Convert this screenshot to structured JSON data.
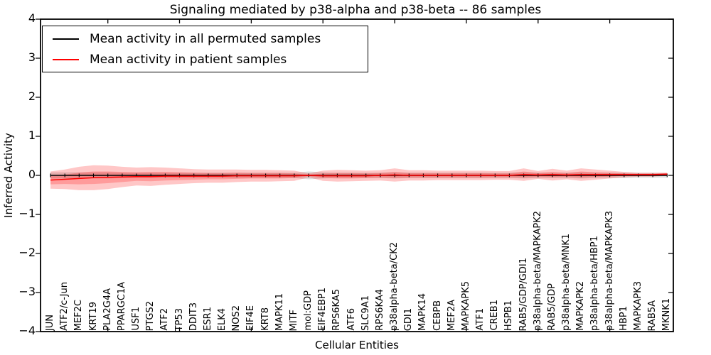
{
  "title": "Signaling mediated by p38-alpha and p38-beta -- 86 samples",
  "axes": {
    "xlabel": "Cellular Entities",
    "ylabel": "Inferred Activity",
    "yticks": [
      "4",
      "3",
      "2",
      "1",
      "0",
      "−1",
      "−2",
      "−3",
      "−4"
    ],
    "ylim": [
      -4,
      4
    ],
    "grid": false
  },
  "legend": {
    "position": "upper-left",
    "items": [
      {
        "label": "Mean activity in all permuted samples",
        "color": "#000000"
      },
      {
        "label": "Mean activity in patient samples",
        "color": "#ff0000"
      }
    ]
  },
  "colors": {
    "patient_line": "#ff0000",
    "permuted_line": "#000000",
    "patient_band": "rgba(255,0,0,0.22)",
    "permuted_band": "rgba(0,0,0,0.13)",
    "frame": "#000000"
  },
  "chart_data": {
    "type": "line",
    "title": "Signaling mediated by p38-alpha and p38-beta -- 86 samples",
    "xlabel": "Cellular Entities",
    "ylabel": "Inferred Activity",
    "ylim": [
      -4,
      4
    ],
    "legend_position": "upper-left",
    "grid": false,
    "categories": [
      "JUN",
      "ATF2/c-Jun",
      "MEF2C",
      "KRT19",
      "PLA2G4A",
      "PPARGC1A",
      "USF1",
      "PTGS2",
      "ATF2",
      "TP53",
      "DDIT3",
      "ESR1",
      "ELK4",
      "NOS2",
      "EIF4E",
      "KRT8",
      "MAPK11",
      "MITF",
      "mol:GDP",
      "EIF4EBP1",
      "RPS6KA5",
      "ATF6",
      "SLC9A1",
      "RPS6KA4",
      "p38alpha-beta/CK2",
      "GDI1",
      "MAPK14",
      "CEBPB",
      "MEF2A",
      "MAPKAPK5",
      "ATF1",
      "CREB1",
      "HSPB1",
      "RAB5/GDP/GDI1",
      "p38alpha-beta/MAPKAPK2",
      "RAB5/GDP",
      "p38alpha-beta/MNK1",
      "MAPKAPK2",
      "p38alpha-beta/HBP1",
      "p38alpha-beta/MAPKAPK3",
      "HBP1",
      "MAPKAPK3",
      "RAB5A",
      "MKNK1"
    ],
    "series": [
      {
        "name": "Mean activity in all permuted samples",
        "color": "#000000",
        "values": [
          0,
          0,
          0,
          0,
          0,
          0,
          0,
          0,
          0,
          0,
          0,
          0,
          0,
          0,
          0,
          0,
          0,
          0,
          0,
          0,
          0,
          0,
          0,
          0,
          0,
          0,
          0,
          0,
          0,
          0,
          0,
          0,
          0,
          0,
          0,
          0,
          0,
          0,
          0,
          0,
          0,
          0,
          0,
          0
        ],
        "band_half_width": [
          0.08,
          0.08,
          0.08,
          0.08,
          0.08,
          0.07,
          0.07,
          0.07,
          0.07,
          0.07,
          0.07,
          0.07,
          0.07,
          0.07,
          0.07,
          0.07,
          0.07,
          0.07,
          0.1,
          0.08,
          0.07,
          0.07,
          0.07,
          0.07,
          0.08,
          0.07,
          0.07,
          0.07,
          0.07,
          0.07,
          0.07,
          0.07,
          0.07,
          0.08,
          0.07,
          0.07,
          0.07,
          0.08,
          0.07,
          0.07,
          0.07,
          0.06,
          0.06,
          0.06
        ]
      },
      {
        "name": "Mean activity in patient samples",
        "color": "#ff0000",
        "values": [
          -0.12,
          -0.1,
          -0.08,
          -0.06,
          -0.05,
          -0.04,
          -0.03,
          -0.03,
          -0.02,
          -0.02,
          -0.02,
          -0.02,
          -0.02,
          -0.01,
          -0.01,
          -0.01,
          -0.01,
          -0.01,
          0,
          -0.01,
          -0.01,
          -0.01,
          -0.01,
          0,
          0.01,
          0,
          0,
          0,
          0,
          0,
          0,
          0,
          0,
          0.02,
          0.01,
          0.02,
          0.01,
          0.02,
          0.02,
          0.02,
          0.02,
          0.02,
          0.02,
          0.03
        ],
        "band_outer_half_width": [
          0.22,
          0.25,
          0.3,
          0.32,
          0.3,
          0.26,
          0.23,
          0.24,
          0.22,
          0.2,
          0.18,
          0.17,
          0.17,
          0.16,
          0.15,
          0.15,
          0.14,
          0.13,
          0.05,
          0.13,
          0.15,
          0.14,
          0.13,
          0.13,
          0.17,
          0.13,
          0.13,
          0.12,
          0.12,
          0.12,
          0.12,
          0.11,
          0.11,
          0.16,
          0.1,
          0.15,
          0.11,
          0.16,
          0.13,
          0.1,
          0.07,
          0.05,
          0.05,
          0.04
        ],
        "band_inner_half_width": [
          0.11,
          0.12,
          0.15,
          0.16,
          0.15,
          0.13,
          0.11,
          0.12,
          0.11,
          0.1,
          0.09,
          0.08,
          0.08,
          0.08,
          0.07,
          0.07,
          0.07,
          0.06,
          0.02,
          0.06,
          0.07,
          0.07,
          0.06,
          0.06,
          0.08,
          0.06,
          0.06,
          0.06,
          0.06,
          0.06,
          0.06,
          0.05,
          0.05,
          0.08,
          0.05,
          0.07,
          0.05,
          0.08,
          0.06,
          0.05,
          0.03,
          0.02,
          0.02,
          0.02
        ]
      }
    ]
  }
}
